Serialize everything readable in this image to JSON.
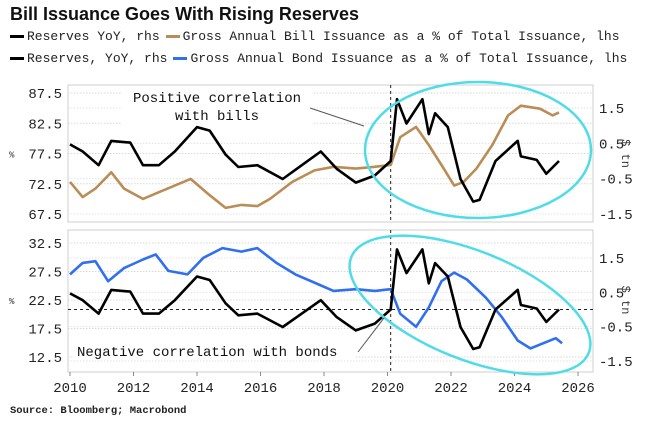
{
  "title": "Bill Issuance Goes With Rising Reserves",
  "legend": [
    {
      "label": "Reserves YoY, rhs",
      "color": "#000000"
    },
    {
      "label": "Gross Annual Bill Issuance as a % of Total Issuance, lhs",
      "color": "#b98d55"
    },
    {
      "label": "Reserves, YoY, rhs",
      "color": "#000000"
    },
    {
      "label": "Gross Annual Bond Issuance as a % of Total Issuance, lhs",
      "color": "#2f6ff0"
    }
  ],
  "source": "Source: Bloomberg; Macrobond",
  "colors": {
    "reserves": "#000000",
    "bills": "#b98d55",
    "bonds": "#2f6ff0",
    "ellipse": "#4fdce8"
  },
  "chart_data": [
    {
      "type": "line",
      "panel": "top",
      "ylabel_left": "%",
      "ylabel_right": "$ tn",
      "left_ticks": [
        "87.5",
        "82.5",
        "77.5",
        "72.5",
        "67.5"
      ],
      "left_range": [
        67.5,
        87.5
      ],
      "right_ticks": [
        "1.5",
        "0.5",
        "-0.5",
        "-1.5"
      ],
      "right_range": [
        -1.5,
        1.5
      ],
      "xlim": [
        2010,
        2026
      ],
      "vline_x": 2020.1,
      "annotation": [
        "Positive correlation",
        "with bills"
      ],
      "series": [
        {
          "name": "Reserves YoY, rhs",
          "axis": "right",
          "color_key": "reserves",
          "x": [
            2010.0,
            2010.4,
            2010.9,
            2011.3,
            2011.9,
            2012.3,
            2012.8,
            2013.3,
            2014.0,
            2014.4,
            2014.9,
            2015.3,
            2015.9,
            2016.7,
            2017.3,
            2017.9,
            2018.4,
            2019.0,
            2019.6,
            2020.1,
            2020.3,
            2020.6,
            2021.1,
            2021.3,
            2021.5,
            2021.9,
            2022.3,
            2022.7,
            2022.9,
            2023.4,
            2024.1,
            2024.2,
            2024.7,
            2025.0,
            2025.4
          ],
          "y": [
            0.47,
            0.27,
            -0.12,
            0.57,
            0.52,
            -0.12,
            -0.12,
            0.27,
            0.96,
            0.86,
            0.18,
            -0.17,
            -0.12,
            -0.51,
            -0.12,
            0.27,
            -0.22,
            -0.61,
            -0.41,
            0.0,
            1.75,
            1.06,
            1.75,
            0.76,
            1.35,
            0.96,
            -0.51,
            -1.15,
            -1.1,
            0.0,
            0.57,
            0.13,
            0.03,
            -0.36,
            0.0
          ]
        },
        {
          "name": "Gross Annual Bill Issuance as a % of Total Issuance, lhs",
          "axis": "left",
          "color_key": "bills",
          "x": [
            2010.0,
            2010.4,
            2010.8,
            2011.3,
            2011.7,
            2012.3,
            2012.8,
            2013.3,
            2013.8,
            2014.4,
            2014.9,
            2015.4,
            2015.9,
            2016.3,
            2017.0,
            2017.7,
            2018.3,
            2019.0,
            2019.6,
            2020.1,
            2020.4,
            2020.9,
            2021.3,
            2021.7,
            2022.1,
            2022.4,
            2022.8,
            2023.3,
            2023.8,
            2024.2,
            2024.8,
            2025.2,
            2025.4
          ],
          "y": [
            72.8,
            70.3,
            71.7,
            74.4,
            71.7,
            70.0,
            71.1,
            72.2,
            73.3,
            70.6,
            68.5,
            69.0,
            68.8,
            70.0,
            72.8,
            74.7,
            75.3,
            75.0,
            75.3,
            75.6,
            80.2,
            81.9,
            78.9,
            75.6,
            72.2,
            72.8,
            75.0,
            78.9,
            83.8,
            85.4,
            84.9,
            83.8,
            84.3
          ]
        }
      ]
    },
    {
      "type": "line",
      "panel": "bottom",
      "ylabel_left": "%",
      "ylabel_right": "$ tn",
      "left_ticks": [
        "32.5",
        "27.5",
        "22.5",
        "17.5",
        "12.5"
      ],
      "left_range": [
        12.5,
        32.5
      ],
      "right_ticks": [
        "1.5",
        "0.5",
        "-0.5",
        "-1.5"
      ],
      "right_range": [
        -1.5,
        1.5
      ],
      "xlim": [
        2010,
        2026
      ],
      "x_ticks": [
        "2010",
        "2012",
        "2014",
        "2016",
        "2018",
        "2020",
        "2022",
        "2024",
        "2026"
      ],
      "vline_x": 2020.1,
      "hline_right": 0,
      "annotation": [
        "Negative correlation with bonds"
      ],
      "series": [
        {
          "name": "Reserves, YoY, rhs",
          "axis": "right",
          "color_key": "reserves",
          "x": [
            2010.0,
            2010.4,
            2010.9,
            2011.3,
            2011.9,
            2012.3,
            2012.8,
            2013.3,
            2014.0,
            2014.4,
            2014.9,
            2015.3,
            2015.9,
            2016.7,
            2017.3,
            2017.9,
            2018.4,
            2019.0,
            2019.6,
            2020.1,
            2020.3,
            2020.6,
            2021.1,
            2021.3,
            2021.5,
            2021.9,
            2022.3,
            2022.7,
            2022.9,
            2023.4,
            2024.1,
            2024.2,
            2024.7,
            2025.0,
            2025.4
          ],
          "y": [
            0.47,
            0.27,
            -0.12,
            0.57,
            0.52,
            -0.12,
            -0.12,
            0.27,
            0.96,
            0.86,
            0.18,
            -0.17,
            -0.12,
            -0.51,
            -0.12,
            0.27,
            -0.22,
            -0.61,
            -0.41,
            0.0,
            1.75,
            1.06,
            1.75,
            0.76,
            1.35,
            0.96,
            -0.51,
            -1.15,
            -1.1,
            0.0,
            0.57,
            0.13,
            0.03,
            -0.36,
            0.0
          ]
        },
        {
          "name": "Gross Annual Bond Issuance as a % of Total Issuance, lhs",
          "axis": "left",
          "color_key": "bonds",
          "x": [
            2010.0,
            2010.4,
            2010.8,
            2011.2,
            2011.7,
            2012.3,
            2012.7,
            2013.1,
            2013.7,
            2014.2,
            2014.8,
            2015.4,
            2015.9,
            2016.5,
            2017.1,
            2017.8,
            2018.3,
            2019.0,
            2019.6,
            2020.1,
            2020.4,
            2020.9,
            2021.3,
            2021.7,
            2022.1,
            2022.5,
            2023.1,
            2023.6,
            2024.1,
            2024.5,
            2024.9,
            2025.3,
            2025.5
          ],
          "y": [
            27.0,
            29.0,
            29.3,
            25.8,
            28.1,
            29.6,
            30.5,
            27.6,
            27.0,
            29.9,
            31.6,
            31.0,
            31.6,
            29.0,
            27.0,
            25.3,
            24.1,
            24.4,
            24.1,
            24.4,
            20.1,
            17.8,
            21.2,
            25.8,
            27.3,
            26.1,
            22.9,
            19.5,
            15.4,
            14.0,
            14.9,
            15.8,
            14.9
          ]
        }
      ]
    }
  ]
}
